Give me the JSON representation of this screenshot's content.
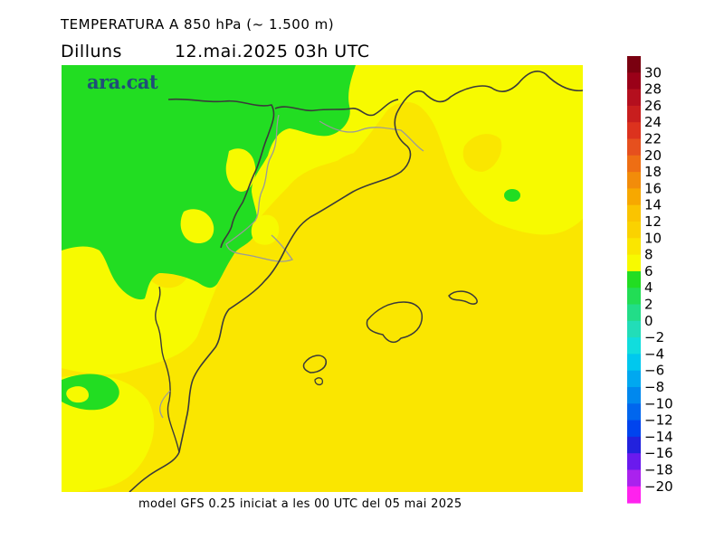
{
  "header": {
    "title": "TEMPERATURA A 850 hPa (~ 1.500 m)",
    "day": "Dilluns",
    "datetime": "12.mai.2025 03h UTC"
  },
  "footer": {
    "model_info": "model GFS 0.25 iniciat a les 00 UTC del 05 mai 2025"
  },
  "logo": {
    "text": "ara.cat"
  },
  "map": {
    "region": "Catalonia / Western Mediterranean",
    "variable": "temperature at 850 hPa",
    "fill_colors": {
      "band_4_6": "#22dd22",
      "band_6_8": "#f7fa00",
      "band_8_10": "#fae600"
    }
  },
  "legend": {
    "labels": [
      "30",
      "28",
      "26",
      "24",
      "22",
      "20",
      "18",
      "16",
      "14",
      "12",
      "10",
      "8",
      "6",
      "4",
      "2",
      "0",
      "−2",
      "−4",
      "−6",
      "−8",
      "−10",
      "−12",
      "−14",
      "−16",
      "−18",
      "−20"
    ],
    "colors": [
      "#7a0010",
      "#9a0018",
      "#b40f1e",
      "#c81e1e",
      "#dc321e",
      "#e6501e",
      "#ee6e14",
      "#f28c0a",
      "#f7a800",
      "#fac400",
      "#fad200",
      "#fae600",
      "#f7fa00",
      "#22dd22",
      "#22dd55",
      "#22dd88",
      "#22ddb8",
      "#11dddd",
      "#00c8ee",
      "#00a8f0",
      "#0088ee",
      "#0066ee",
      "#0044ee",
      "#2222dd",
      "#6a1aee",
      "#aa22ee",
      "#ff22ee"
    ]
  }
}
